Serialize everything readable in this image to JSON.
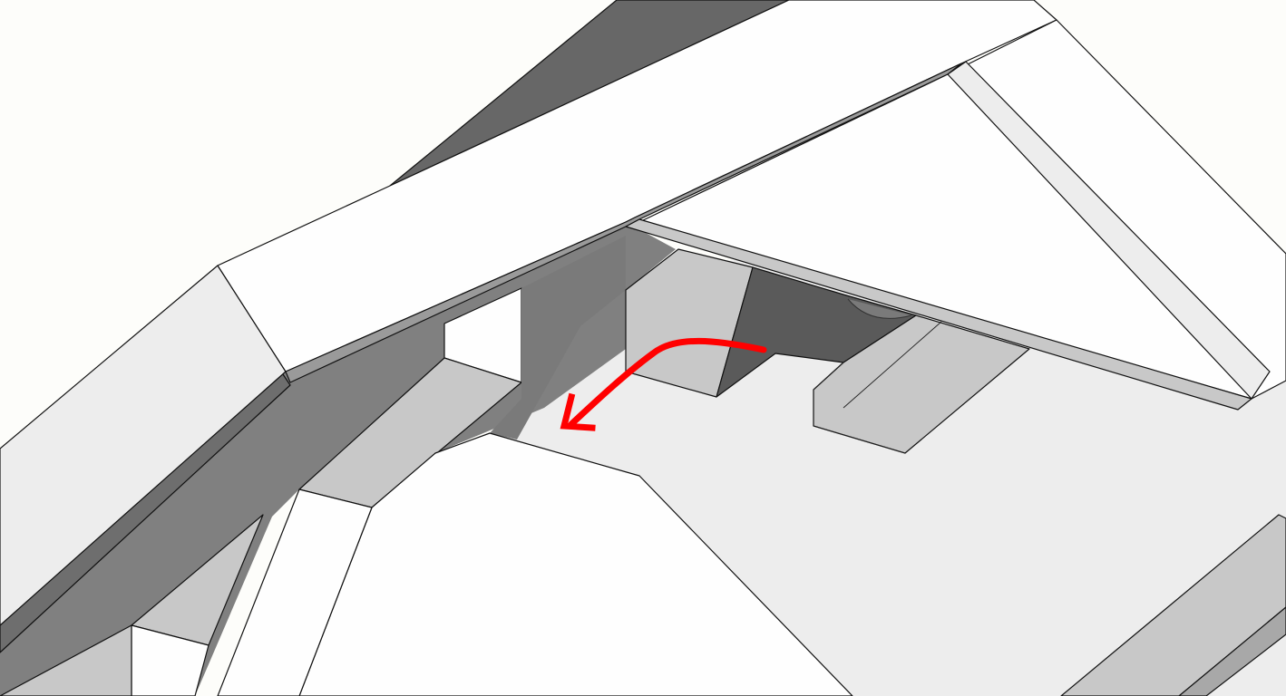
{
  "colors": {
    "background": "#fdfdfa",
    "white_face": "#fefefe",
    "light_face": "#ededed",
    "light_gray_face": "#c8c8c8",
    "mid_gray_face": "#808080",
    "dark_face": "#676767",
    "darker_face": "#5a5a5a",
    "arrow": "#ff0000"
  },
  "annotation": {
    "icon": "curved-arrow-icon"
  }
}
